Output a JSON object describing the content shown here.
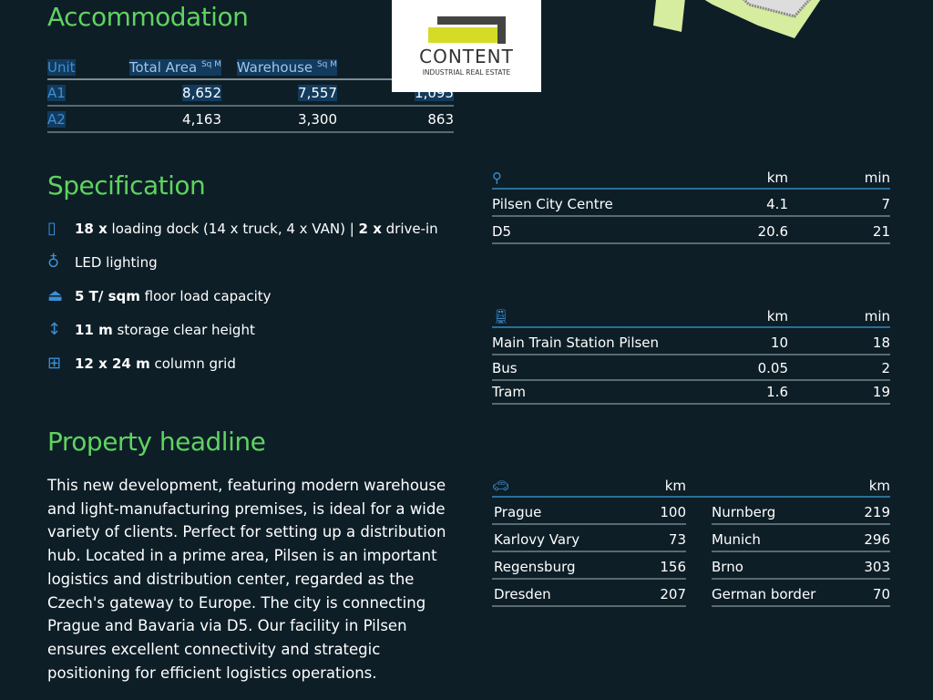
{
  "accommodation": {
    "title": "Accommodation",
    "headers": [
      "Unit",
      "Total Area",
      "Warehouse",
      ""
    ],
    "unit_sup": "Sq M",
    "rows": [
      [
        "A1",
        "8,652",
        "7,557",
        "1,095"
      ],
      [
        "A2",
        "4,163",
        "3,300",
        "863"
      ]
    ]
  },
  "logo": {
    "name": "CONTENT",
    "tagline": "INDUSTRIAL REAL ESTATE",
    "colors": {
      "green": "#d4dc26",
      "dark": "#444444"
    }
  },
  "specification": {
    "title": "Specification",
    "items": [
      {
        "icon": "door-icon",
        "bold": "18 x",
        "text": " loading dock (14 x truck, 4 x VAN) | ",
        "bold2": "2 x",
        "text2": " drive-in"
      },
      {
        "icon": "bulb-icon",
        "bold": "",
        "text": "LED lighting"
      },
      {
        "icon": "weight-icon",
        "bold": "5 T/ sqm",
        "text": " floor load capacity"
      },
      {
        "icon": "height-arrow-icon",
        "bold": "11 m",
        "text": " storage clear height"
      },
      {
        "icon": "grid-icon",
        "bold": "12 x 24 m",
        "text": " column grid"
      }
    ]
  },
  "headline": {
    "title": "Property headline",
    "text": "This new development, featuring modern warehouse and light-manufacturing premises, is ideal for a wide variety of clients. Perfect for setting up a distribution hub. Located in a prime area, Pilsen is an important logistics and distribution center, regarded as the Czech's gateway to Europe. The city is connecting Prague and Bavaria via D5. Our facility in Pilsen ensures excellent connectivity and strategic positioning for efficient logistics operations."
  },
  "location": {
    "km": "km",
    "min": "min",
    "rows": [
      [
        "Pilsen City Centre",
        "4.1",
        "7"
      ],
      [
        "D5",
        "20.6",
        "21"
      ]
    ]
  },
  "transit": {
    "km": "km",
    "min": "min",
    "rows": [
      [
        "Main Train Station Pilsen",
        "10",
        "18"
      ],
      [
        "Bus",
        "0.05",
        "2"
      ],
      [
        "Tram",
        "1.6",
        "19"
      ]
    ]
  },
  "car": {
    "km": "km",
    "left": [
      [
        "Prague",
        "100"
      ],
      [
        "Karlovy Vary",
        "73"
      ],
      [
        "Regensburg",
        "156"
      ],
      [
        "Dresden",
        "207"
      ]
    ],
    "right": [
      [
        "Nurnberg",
        "219"
      ],
      [
        "Munich",
        "296"
      ],
      [
        "Brno",
        "303"
      ],
      [
        "German border",
        "70"
      ]
    ]
  },
  "colors": {
    "background": "#0d1e27",
    "heading": "#5fd35f",
    "accent": "#3d8fd6"
  }
}
